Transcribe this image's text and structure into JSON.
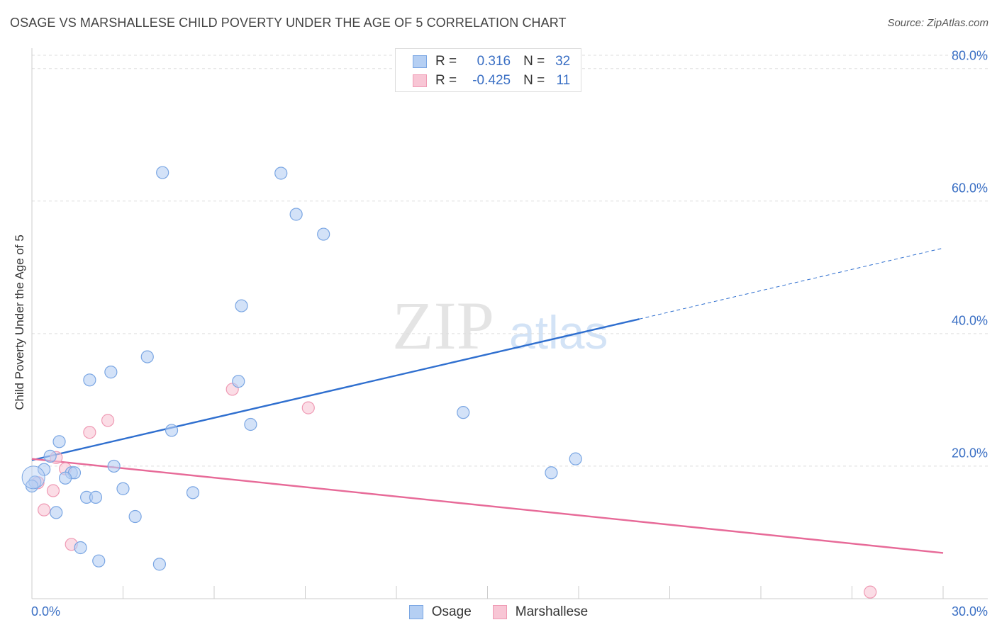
{
  "title": "OSAGE VS MARSHALLESE CHILD POVERTY UNDER THE AGE OF 5 CORRELATION CHART",
  "source": "Source: ZipAtlas.com",
  "watermark": {
    "zip": "ZIP",
    "atlas": "atlas"
  },
  "legend": {
    "osage": {
      "r_label": "R =",
      "r_value": "0.316",
      "n_label": "N =",
      "n_value": "32"
    },
    "marshallese": {
      "r_label": "R =",
      "r_value": "-0.425",
      "n_label": "N =",
      "n_value": "11"
    }
  },
  "colors": {
    "osage_fill": "#b5cff3",
    "osage_stroke": "#7aa6e3",
    "osage_line": "#2f6fcf",
    "marshallese_fill": "#f8c6d5",
    "marshallese_stroke": "#ef9ab4",
    "marshallese_line": "#e76a98",
    "tick_label": "#3a6fc4",
    "grid": "#dddddd"
  },
  "chart_data": {
    "type": "scatter",
    "title": "OSAGE VS MARSHALLESE CHILD POVERTY UNDER THE AGE OF 5 CORRELATION CHART",
    "xlabel": "",
    "ylabel": "Child Poverty Under the Age of 5",
    "xlim": [
      0,
      30
    ],
    "ylim": [
      0,
      82
    ],
    "x_tick_labels": [
      "0.0%",
      "30.0%"
    ],
    "y_ticks": [
      20,
      40,
      60,
      80
    ],
    "y_tick_labels": [
      "20.0%",
      "40.0%",
      "60.0%",
      "80.0%"
    ],
    "grid": true,
    "legend_position": "top-center",
    "series": [
      {
        "name": "Osage",
        "points": [
          [
            4.3,
            64.3
          ],
          [
            8.2,
            64.2
          ],
          [
            8.7,
            58.0
          ],
          [
            9.6,
            55.0
          ],
          [
            6.9,
            44.2
          ],
          [
            3.8,
            36.5
          ],
          [
            2.6,
            34.2
          ],
          [
            1.9,
            33.0
          ],
          [
            6.8,
            32.8
          ],
          [
            14.2,
            28.1
          ],
          [
            7.2,
            26.3
          ],
          [
            4.6,
            25.4
          ],
          [
            0.9,
            23.7
          ],
          [
            0.6,
            21.5
          ],
          [
            2.7,
            20.0
          ],
          [
            1.3,
            19.0
          ],
          [
            1.4,
            19.0
          ],
          [
            0.4,
            19.5
          ],
          [
            1.1,
            18.2
          ],
          [
            0.1,
            17.6
          ],
          [
            0.0,
            17.0
          ],
          [
            17.9,
            21.1
          ],
          [
            17.1,
            19.0
          ],
          [
            3.0,
            16.6
          ],
          [
            5.3,
            16.0
          ],
          [
            1.8,
            15.3
          ],
          [
            2.1,
            15.3
          ],
          [
            0.8,
            13.0
          ],
          [
            3.4,
            12.4
          ],
          [
            1.6,
            7.7
          ],
          [
            2.2,
            5.7
          ],
          [
            4.2,
            5.2
          ]
        ],
        "trend": {
          "x": [
            0,
            20
          ],
          "y": [
            20.9,
            42.2
          ]
        },
        "trend_extension": {
          "x": [
            20,
            30
          ],
          "y": [
            42.2,
            52.9
          ]
        }
      },
      {
        "name": "Marshallese",
        "points": [
          [
            6.6,
            31.6
          ],
          [
            9.1,
            28.8
          ],
          [
            2.5,
            26.9
          ],
          [
            1.9,
            25.1
          ],
          [
            0.8,
            21.3
          ],
          [
            1.1,
            19.6
          ],
          [
            0.7,
            16.3
          ],
          [
            0.4,
            13.4
          ],
          [
            1.3,
            8.2
          ],
          [
            0.2,
            17.5
          ],
          [
            27.6,
            1.0
          ]
        ],
        "trend": {
          "x": [
            0,
            30
          ],
          "y": [
            21.1,
            6.9
          ]
        }
      }
    ]
  },
  "bottom_legend": {
    "osage": "Osage",
    "marshallese": "Marshallese"
  }
}
